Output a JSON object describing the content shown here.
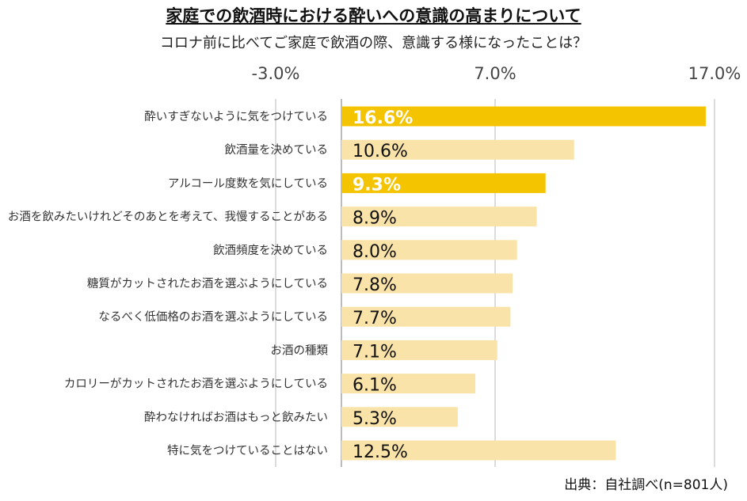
{
  "title": "家庭での飲酒時における酔いへの意識の高まりについて",
  "subtitle": "コロナ前に比べてご家庭で飲酒の際、意識する様になったことは？",
  "source": "出典：自社調べ(n=801人)",
  "colors": {
    "highlight": "#f5c400",
    "normal": "#fae3a8",
    "gridline": "#d0d0d0",
    "axis": "#bbbbbb",
    "highlight_text": "#ffffff",
    "normal_text": "#111111"
  },
  "chart_data": {
    "type": "bar",
    "orientation": "horizontal",
    "title": "家庭での飲酒時における酔いへの意識の高まりについて",
    "subtitle": "コロナ前に比べてご家庭で飲酒の際、意識する様になったことは？",
    "xlim": [
      -3.0,
      17.0
    ],
    "ticks": [
      -3.0,
      7.0,
      17.0
    ],
    "tick_labels": [
      "-3.0%",
      "7.0%",
      "17.0%"
    ],
    "grid": true,
    "categories": [
      "酔いすぎないように気をつけている",
      "飲酒量を決めている",
      "アルコール度数を気にしている",
      "お酒を飲みたいけれどそのあとを考えて、我慢することがある",
      "飲酒頻度を決めている",
      "糖質がカットされたお酒を選ぶようにしている",
      "なるべく低価格のお酒を選ぶようにしている",
      "お酒の種類",
      "カロリーがカットされたお酒を選ぶようにしている",
      "酔わなければお酒はもっと飲みたい",
      "特に気をつけていることはない"
    ],
    "values": [
      16.6,
      10.6,
      9.3,
      8.9,
      8.0,
      7.8,
      7.7,
      7.1,
      6.1,
      5.3,
      12.5
    ],
    "value_labels": [
      "16.6%",
      "10.6%",
      "9.3%",
      "8.9%",
      "8.0%",
      "7.8%",
      "7.7%",
      "7.1%",
      "6.1%",
      "5.3%",
      "12.5%"
    ],
    "highlighted": [
      true,
      false,
      true,
      false,
      false,
      false,
      false,
      false,
      false,
      false,
      false
    ]
  }
}
